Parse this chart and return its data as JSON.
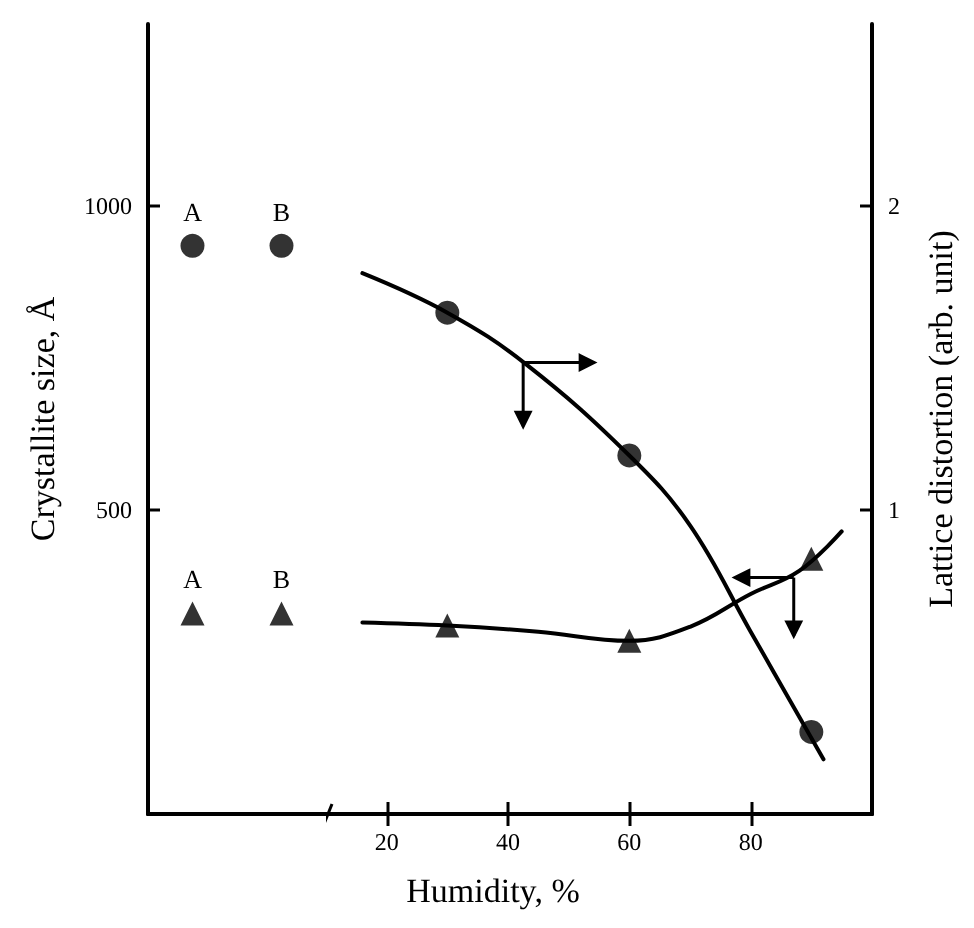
{
  "chart_data": [
    {
      "type": "scatter",
      "ylabel": "Crystallite size, Å",
      "categories": [
        null,
        null
      ],
      "ylim": [
        0,
        1300
      ],
      "yticks": [
        500,
        1000
      ],
      "y2lim": [
        0,
        2.6
      ],
      "tick_labels": "y",
      "series": [
        {
          "marker": "circle",
          "axis": "y2",
          "color": "#000000",
          "values": [
            1.87,
            1.87
          ]
        },
        {
          "marker": "triangle",
          "color": "#000000",
          "values": [
            330,
            330
          ]
        }
      ],
      "annotations": [
        "A",
        "B",
        "A",
        "B"
      ]
    },
    {
      "type": "scatter",
      "xlabel": "Humidity, %",
      "y2label": "Lattice distortion (arb. unit)",
      "xlim": [
        10,
        100
      ],
      "xticks": [
        20,
        40,
        60,
        80
      ],
      "ylim": [
        0,
        1300
      ],
      "y2lim": [
        0,
        2.6
      ],
      "y2ticks": [
        1,
        2
      ],
      "series": [
        {
          "marker": "circle",
          "axis": "y2",
          "color": "#000000",
          "x": [
            30,
            60,
            90
          ],
          "values": [
            1.65,
            1.18,
            0.27
          ]
        },
        {
          "marker": "triangle",
          "color": "#000000",
          "x": [
            30,
            60,
            90
          ],
          "values": [
            310,
            285,
            420
          ]
        },
        {
          "type": "line",
          "marker": "none",
          "axis": "y2",
          "color": "#000000",
          "x": [
            16,
            30,
            43,
            60,
            70,
            80,
            92
          ],
          "values": [
            1.78,
            1.65,
            1.48,
            1.18,
            0.95,
            0.6,
            0.18
          ]
        },
        {
          "type": "line",
          "marker": "none",
          "color": "#000000",
          "x": [
            16,
            30,
            45,
            60,
            70,
            80,
            88,
            95
          ],
          "values": [
            315,
            310,
            300,
            285,
            308,
            362,
            400,
            465
          ]
        }
      ]
    }
  ]
}
